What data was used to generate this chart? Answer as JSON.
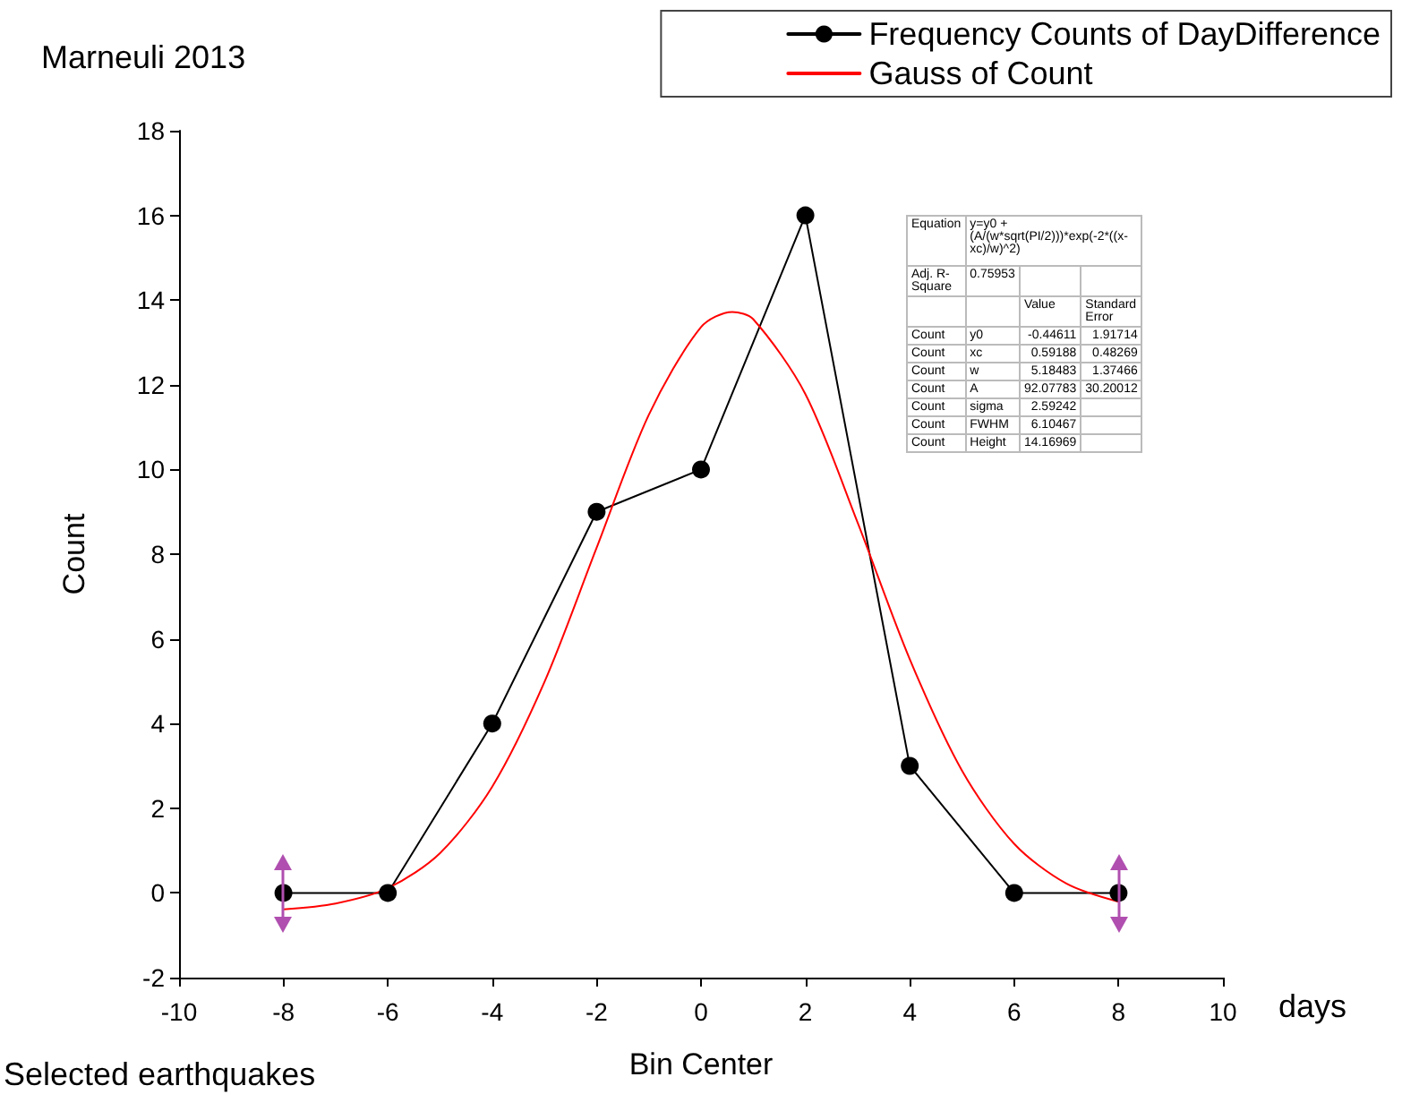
{
  "chart_data": {
    "type": "line",
    "title": "Marneuli 2013",
    "xlabel": "Bin Center",
    "ylabel": "Count",
    "annotations": [
      "days",
      "Selected earthquakes",
      "Equation",
      "y=y0 + (A/(w*sqrt(PI/2)))*exp(-2*((x-xc)/w)^2)",
      "Adj. R-Square",
      "0.75953",
      "Value",
      "Standard Error",
      "Count",
      "y0",
      "-0.44611",
      "1.91714",
      "Count",
      "xc",
      "0.59188",
      "0.48269",
      "Count",
      "w",
      "5.18483",
      "1.37466",
      "Count",
      "A",
      "92.07783",
      "30.20012",
      "Count",
      "sigma",
      "2.59242",
      "Count",
      "FWHM",
      "6.10467",
      "Count",
      "Height",
      "14.16969"
    ],
    "series": [
      {
        "name": "Frequency Counts of DayDifference",
        "color": "#000000",
        "marker": "circle",
        "x": [
          -8,
          -6,
          -4,
          -2,
          0,
          2,
          4,
          6,
          8
        ],
        "values": [
          0,
          0,
          4,
          9,
          10,
          16,
          3,
          0,
          0
        ]
      },
      {
        "name": "Gauss of Count",
        "color": "#ff0000",
        "marker": "none",
        "x": [
          -8,
          -7,
          -6,
          -5,
          -4,
          -3,
          -2,
          -1,
          0,
          0.6,
          1,
          2,
          3,
          4,
          5,
          6,
          7,
          8
        ],
        "values": [
          -0.39,
          -0.25,
          0.11,
          0.94,
          2.51,
          4.98,
          8.15,
          11.29,
          13.36,
          13.72,
          13.55,
          11.78,
          8.75,
          5.52,
          2.89,
          1.16,
          0.22,
          -0.21
        ]
      }
    ],
    "xlim": [
      -10,
      10
    ],
    "xticks": [
      -10,
      -8,
      -6,
      -4,
      -2,
      0,
      2,
      4,
      6,
      8,
      10
    ],
    "ylim": [
      -2,
      18
    ],
    "yticks": [
      -2,
      0,
      2,
      4,
      6,
      8,
      10,
      12,
      14,
      16,
      18
    ],
    "grid": false,
    "legend": "top right",
    "line_style": "solid"
  }
}
